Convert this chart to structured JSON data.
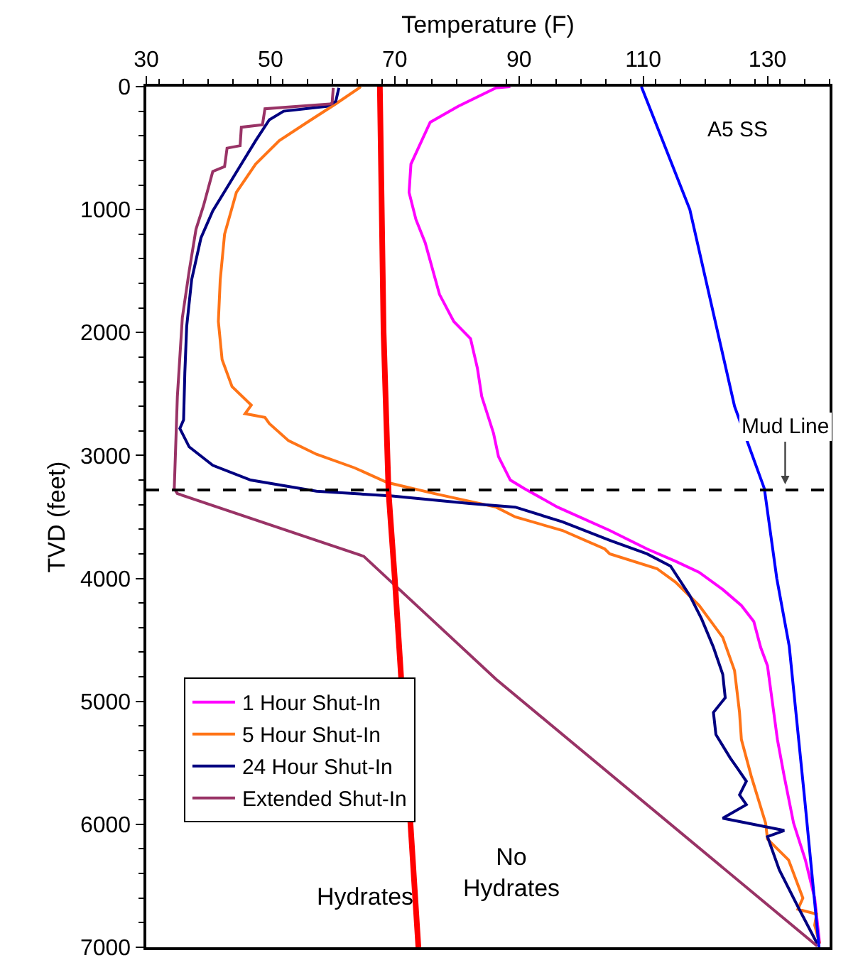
{
  "chart_data": {
    "type": "line",
    "xlabel": "Temperature (F)",
    "ylabel": "TVD (feet)",
    "xlim": [
      30,
      140
    ],
    "xticks": [
      30,
      50,
      70,
      90,
      110,
      130
    ],
    "ylim": [
      7000,
      0
    ],
    "yticks": [
      0,
      1000,
      2000,
      3000,
      4000,
      5000,
      6000,
      7000
    ],
    "grid": false,
    "legend": "bottom left",
    "marker": "none",
    "line_style": "solid",
    "series": [
      {
        "name": "1 Hour Shut-In",
        "color": "#ff00ff",
        "x": [
          88.6,
          86.3,
          80.2,
          75.7,
          72.6,
          72.3,
          73.4,
          74.9,
          77.2,
          79.5,
          82.2,
          83.3,
          84,
          85.9,
          86.7,
          88.6,
          90.9,
          96.2,
          104.6,
          110.6,
          115.2,
          119,
          122.8,
          125.8,
          127.8,
          128.9,
          130,
          130.8,
          131.6,
          132.7,
          134.2,
          136.1,
          137.6,
          138.4
        ],
        "values": [
          0,
          10,
          160,
          290,
          630,
          860,
          1080,
          1270,
          1690,
          1910,
          2050,
          2290,
          2520,
          2820,
          3010,
          3200,
          3270,
          3420,
          3610,
          3760,
          3860,
          3950,
          4090,
          4220,
          4350,
          4560,
          4710,
          5010,
          5310,
          5610,
          5990,
          6290,
          6600,
          6970
        ]
      },
      {
        "name": "5 Hour Shut-In",
        "color": "#ff7417",
        "x": [
          64.5,
          64.3,
          60.5,
          55.9,
          51.4,
          47.6,
          44.5,
          42.6,
          41.9,
          41.6,
          42.2,
          43.8,
          46.9,
          45.9,
          49.1,
          49.8,
          52.9,
          57.4,
          63.5,
          68.8,
          76.4,
          86.3,
          89.4,
          97,
          103.8,
          104.6,
          112.2,
          115.2,
          119,
          122.8,
          124.7,
          125.5,
          125.8,
          127.4,
          129.7,
          130,
          133.4,
          135.7,
          134.9,
          137.9,
          137.6,
          138.4
        ],
        "values": [
          0,
          10,
          140,
          290,
          440,
          630,
          860,
          1200,
          1570,
          1910,
          2220,
          2440,
          2590,
          2660,
          2690,
          2740,
          2880,
          2990,
          3100,
          3220,
          3310,
          3420,
          3500,
          3610,
          3760,
          3800,
          3920,
          4030,
          4220,
          4480,
          4750,
          5090,
          5310,
          5610,
          5990,
          6120,
          6290,
          6600,
          6690,
          6730,
          6820,
          6970
        ]
      },
      {
        "name": "24 Hour Shut-In",
        "color": "#000080",
        "x": [
          61,
          60.5,
          59,
          52.1,
          49.8,
          47.6,
          45.3,
          43,
          40.7,
          38.8,
          37.3,
          36.5,
          36.2,
          36,
          35.4,
          36.9,
          40.7,
          46.8,
          57.4,
          69.6,
          82,
          89.4,
          97,
          104.6,
          110.6,
          114.4,
          117.5,
          119.4,
          121.3,
          122.8,
          123.2,
          121.3,
          121.7,
          124,
          125.1,
          126.6,
          125.5,
          126.6,
          122.8,
          132.7,
          130,
          131.9,
          134.9,
          138
        ],
        "values": [
          10,
          120,
          160,
          200,
          270,
          440,
          630,
          820,
          1010,
          1230,
          1570,
          1950,
          2330,
          2710,
          2780,
          2930,
          3080,
          3200,
          3290,
          3330,
          3390,
          3420,
          3540,
          3690,
          3800,
          3900,
          4140,
          4330,
          4560,
          4780,
          4970,
          5090,
          5270,
          5460,
          5540,
          5650,
          5760,
          5840,
          5950,
          6050,
          6100,
          6370,
          6670,
          6970
        ]
      },
      {
        "name": "Extended Shut-In",
        "color": "#993366",
        "x": [
          60.1,
          59.9,
          49.1,
          48.7,
          45.3,
          45.1,
          43,
          42.6,
          40.7,
          39.2,
          38,
          36.9,
          35.8,
          35,
          34.5,
          35,
          65,
          86.3,
          138
        ],
        "values": [
          10,
          140,
          180,
          310,
          330,
          480,
          500,
          650,
          690,
          970,
          1160,
          1500,
          1880,
          2520,
          3270,
          3310,
          3820,
          4820,
          6990
        ]
      },
      {
        "name": "A5 SS",
        "color": "#0000ff",
        "x": [
          109.7,
          117.5,
          124.7,
          129.5,
          131.5,
          133.5,
          136,
          138.3
        ],
        "values": [
          0,
          1000,
          2600,
          3270,
          4000,
          4550,
          5800,
          7000
        ]
      },
      {
        "color": "#ff0000",
        "x": [
          67.6,
          68.2,
          69,
          70,
          73.8
        ],
        "values": [
          0,
          2000,
          3300,
          4000,
          7000
        ]
      }
    ],
    "ref_lines": [
      {
        "axis": "y",
        "value": 3280,
        "label": "Mud Line",
        "color": "#000000",
        "line_style": "dashed"
      }
    ],
    "annotations": [
      "Hydrates",
      "No\nHydrates"
    ]
  }
}
